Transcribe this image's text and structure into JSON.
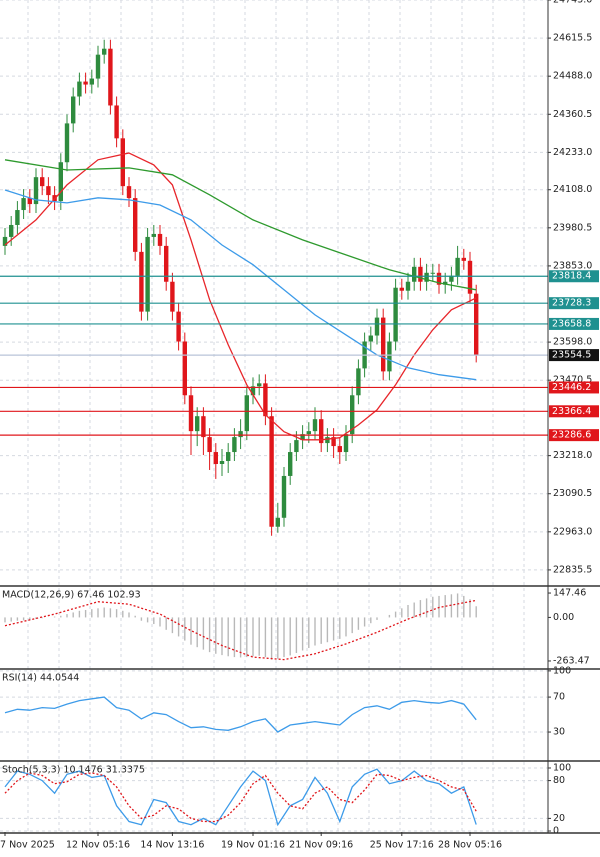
{
  "chart_data": [
    {
      "type": "candlestick",
      "categories": [
        "7 Nov 2025",
        null,
        null,
        null,
        null,
        null,
        null,
        null,
        null,
        null,
        null,
        null,
        null,
        null,
        null,
        "12 Nov 05:16",
        null,
        null,
        null,
        null,
        null,
        null,
        null,
        null,
        null,
        null,
        null,
        "14 Nov 13:16",
        null,
        null,
        null,
        null,
        null,
        null,
        null,
        null,
        null,
        null,
        null,
        null,
        "19 Nov 01:16",
        null,
        null,
        null,
        null,
        null,
        null,
        null,
        null,
        null,
        null,
        "21 Nov 09:16",
        null,
        null,
        null,
        null,
        null,
        null,
        null,
        null,
        null,
        null,
        null,
        null,
        "25 Nov 17:16",
        null,
        null,
        null,
        null,
        null,
        null,
        null,
        null,
        null,
        null,
        "28 Nov 05:16",
        null
      ],
      "open": [
        23920,
        23950,
        23990,
        24040,
        24080,
        24060,
        24150,
        24120,
        24090,
        24070,
        24200,
        24330,
        24420,
        24470,
        24460,
        24480,
        24560,
        24580,
        24390,
        24280,
        24120,
        24080,
        23900,
        23700,
        23950,
        23960,
        23920,
        23800,
        23700,
        23600,
        23420,
        23300,
        23350,
        23280,
        23230,
        23190,
        23200,
        23230,
        23280,
        23300,
        23420,
        23450,
        23460,
        23350,
        22980,
        23010,
        23150,
        23230,
        23270,
        23290,
        23300,
        23340,
        23260,
        23280,
        23250,
        23230,
        23290,
        23420,
        23510,
        23600,
        23620,
        23680,
        23500,
        23600,
        23780,
        23770,
        23800,
        23850,
        23800,
        23830,
        23830,
        23790,
        23800,
        23820,
        23880,
        23870,
        23760
      ],
      "high": [
        23980,
        24020,
        24070,
        24110,
        24110,
        24180,
        24180,
        24150,
        24120,
        24230,
        24360,
        24450,
        24500,
        24500,
        24510,
        24590,
        24610,
        24610,
        24420,
        24310,
        24150,
        24110,
        23930,
        23980,
        23990,
        23990,
        23950,
        23830,
        23730,
        23630,
        23450,
        23380,
        23380,
        23310,
        23260,
        23240,
        23260,
        23310,
        23340,
        23450,
        23480,
        23490,
        23490,
        23380,
        23060,
        23180,
        23260,
        23300,
        23320,
        23330,
        23380,
        23370,
        23310,
        23310,
        23280,
        23320,
        23450,
        23540,
        23630,
        23650,
        23710,
        23710,
        23630,
        23810,
        23810,
        23830,
        23880,
        23880,
        23860,
        23860,
        23860,
        23830,
        23850,
        23920,
        23910,
        23900,
        23790
      ],
      "low": [
        23890,
        23920,
        23960,
        24010,
        24030,
        24030,
        24090,
        24060,
        24040,
        24040,
        24170,
        24300,
        24390,
        24430,
        24430,
        24450,
        24530,
        24360,
        24250,
        24090,
        24050,
        23870,
        23670,
        23670,
        23920,
        23890,
        23770,
        23670,
        23570,
        23390,
        23220,
        23250,
        23220,
        23170,
        23140,
        23150,
        23160,
        23200,
        23240,
        23270,
        23390,
        23420,
        23320,
        22950,
        22960,
        22980,
        23120,
        23200,
        23240,
        23260,
        23270,
        23230,
        23230,
        23210,
        23190,
        23200,
        23260,
        23390,
        23480,
        23570,
        23590,
        23470,
        23470,
        23570,
        23740,
        23740,
        23770,
        23770,
        23770,
        23800,
        23760,
        23760,
        23770,
        23790,
        23840,
        23730,
        23530
      ],
      "close": [
        23950,
        23990,
        24040,
        24080,
        24060,
        24150,
        24120,
        24090,
        24070,
        24200,
        24330,
        24420,
        24470,
        24460,
        24480,
        24560,
        24580,
        24390,
        24280,
        24120,
        24080,
        23900,
        23700,
        23950,
        23960,
        23920,
        23800,
        23700,
        23600,
        23420,
        23300,
        23350,
        23280,
        23230,
        23190,
        23200,
        23230,
        23280,
        23300,
        23420,
        23450,
        23460,
        23350,
        22980,
        23010,
        23150,
        23230,
        23270,
        23290,
        23300,
        23340,
        23260,
        23280,
        23250,
        23230,
        23290,
        23420,
        23510,
        23600,
        23620,
        23680,
        23500,
        23600,
        23780,
        23770,
        23800,
        23850,
        23800,
        23830,
        23830,
        23790,
        23800,
        23820,
        23880,
        23870,
        23760,
        23554.5
      ],
      "up_color": "#2e8b3e",
      "down_color": "#e0161b",
      "lines": [
        {
          "color": "#e8262b",
          "x": [
            0,
            5,
            10,
            15,
            20,
            24,
            27,
            30,
            33,
            36,
            39,
            42,
            45,
            48,
            51,
            54,
            57,
            60,
            63,
            66,
            69,
            72,
            76
          ],
          "values": [
            23923,
            24007,
            24124,
            24208,
            24231,
            24191,
            24124,
            23940,
            23740,
            23589,
            23455,
            23355,
            23298,
            23271,
            23271,
            23278,
            23321,
            23371,
            23455,
            23555,
            23639,
            23706,
            23746
          ]
        },
        {
          "color": "#2e9a2e",
          "x": [
            0,
            10,
            20,
            27,
            33,
            40,
            48,
            55,
            62,
            70,
            76
          ],
          "values": [
            24208,
            24174,
            24181,
            24158,
            24091,
            24007,
            23940,
            23890,
            23840,
            23796,
            23773
          ]
        },
        {
          "color": "#3d9be9",
          "x": [
            0,
            5,
            10,
            15,
            20,
            25,
            30,
            35,
            40,
            45,
            50,
            55,
            60,
            65,
            70,
            76
          ],
          "values": [
            24107,
            24074,
            24064,
            24081,
            24074,
            24057,
            24007,
            23923,
            23857,
            23773,
            23689,
            23622,
            23555,
            23512,
            23489,
            23472
          ]
        }
      ],
      "levels": [
        {
          "value": 23818.4,
          "color": "#1f9190"
        },
        {
          "value": 23728.3,
          "color": "#1f9190"
        },
        {
          "value": 23658.8,
          "color": "#1f9190"
        },
        {
          "value": 23554.5,
          "color": "#111111"
        },
        {
          "value": 23446.2,
          "color": "#e0161b"
        },
        {
          "value": 23366.4,
          "color": "#e0161b"
        },
        {
          "value": 23286.6,
          "color": "#e0161b"
        }
      ],
      "ylim": [
        22785,
        24743
      ],
      "yticks": [
        {
          "value": 24743,
          "label": "24743.0"
        },
        24615.5,
        {
          "value": 24488,
          "label": "24488.0"
        },
        24360.5,
        {
          "value": 24233,
          "label": "24233.0"
        },
        {
          "value": 24108,
          "label": "24108.0"
        },
        23980.5,
        {
          "value": 23853,
          "label": "23853.0"
        },
        {
          "value": 23598,
          "label": "23598.0"
        },
        23470.5,
        {
          "value": 23218,
          "label": "23218.0"
        },
        23090.5,
        {
          "value": 22963,
          "label": "22963.0"
        },
        22835.5
      ],
      "grid": true
    },
    {
      "type": "macd",
      "title": "MACD(12,26,9) 67.46 102.93",
      "bars": {
        "color": "#b8b8b8",
        "values": [
          -30,
          -25,
          -20,
          -18,
          -15,
          -10,
          -5,
          0,
          5,
          10,
          20,
          30,
          40,
          45,
          50,
          55,
          60,
          55,
          50,
          40,
          30,
          10,
          -20,
          -30,
          -40,
          -55,
          -75,
          -95,
          -115,
          -140,
          -165,
          -180,
          -195,
          -210,
          -220,
          -228,
          -235,
          -240,
          -242,
          -240,
          -235,
          -232,
          -240,
          -255,
          -250,
          -240,
          -230,
          -215,
          -200,
          -185,
          -170,
          -160,
          -150,
          -140,
          -130,
          -115,
          -95,
          -75,
          -55,
          -35,
          -15,
          0,
          15,
          35,
          55,
          75,
          90,
          105,
          115,
          125,
          130,
          135,
          140,
          145,
          130,
          110,
          67.46
        ]
      },
      "signal": {
        "color": "#e0161b",
        "x": [
          0,
          8,
          15,
          20,
          25,
          30,
          35,
          40,
          45,
          50,
          55,
          60,
          65,
          70,
          76
        ],
        "values": [
          -50,
          20,
          95,
          80,
          20,
          -80,
          -170,
          -240,
          -255,
          -220,
          -160,
          -90,
          -10,
          60,
          102.93
        ]
      },
      "ylim": [
        -306,
        184
      ],
      "yticks": [
        147.46,
        {
          "value": 0,
          "label": "0.00"
        },
        -263.47
      ]
    },
    {
      "type": "line",
      "title": "RSI(14) 44.0544",
      "series": [
        {
          "color": "#3d9be9",
          "x": [
            0,
            2,
            4,
            6,
            8,
            10,
            12,
            14,
            16,
            18,
            20,
            22,
            24,
            26,
            28,
            30,
            32,
            34,
            36,
            38,
            40,
            42,
            44,
            46,
            48,
            50,
            52,
            54,
            56,
            58,
            60,
            62,
            64,
            66,
            68,
            70,
            72,
            74,
            76
          ],
          "values": [
            52,
            56,
            55,
            58,
            57,
            62,
            66,
            68,
            70,
            58,
            55,
            45,
            52,
            50,
            42,
            35,
            36,
            33,
            32,
            36,
            42,
            45,
            30,
            38,
            40,
            42,
            40,
            38,
            50,
            58,
            60,
            56,
            64,
            66,
            64,
            63,
            66,
            62,
            44.0544
          ]
        }
      ],
      "ylim": [
        -2,
        101
      ],
      "yticks": [
        100,
        70,
        30
      ]
    },
    {
      "type": "line",
      "title": "Stoch(5,3,3) 10.1476 31.3375",
      "series": [
        {
          "color": "#3d9be9",
          "x": [
            0,
            2,
            4,
            6,
            8,
            10,
            12,
            14,
            16,
            18,
            20,
            22,
            24,
            26,
            28,
            30,
            32,
            34,
            36,
            38,
            40,
            42,
            44,
            46,
            48,
            50,
            52,
            54,
            56,
            58,
            60,
            62,
            64,
            66,
            68,
            70,
            72,
            74,
            76
          ],
          "values": [
            70,
            95,
            90,
            80,
            60,
            90,
            95,
            85,
            88,
            40,
            15,
            10,
            50,
            45,
            15,
            10,
            20,
            10,
            40,
            70,
            95,
            80,
            10,
            40,
            50,
            85,
            60,
            15,
            70,
            90,
            98,
            75,
            80,
            95,
            80,
            75,
            60,
            70,
            10.1476
          ]
        },
        {
          "color": "#e0161b",
          "dash": true,
          "x": [
            0,
            2,
            4,
            6,
            8,
            10,
            12,
            14,
            16,
            18,
            20,
            22,
            24,
            26,
            28,
            30,
            32,
            34,
            36,
            38,
            40,
            42,
            44,
            46,
            48,
            50,
            52,
            54,
            56,
            58,
            60,
            62,
            64,
            66,
            68,
            70,
            72,
            74,
            76
          ],
          "values": [
            60,
            80,
            92,
            88,
            75,
            78,
            90,
            92,
            88,
            70,
            40,
            20,
            25,
            40,
            35,
            20,
            15,
            15,
            25,
            45,
            75,
            88,
            60,
            40,
            35,
            60,
            70,
            50,
            45,
            65,
            90,
            88,
            80,
            85,
            88,
            80,
            70,
            65,
            31.3375
          ]
        }
      ],
      "ylim": [
        -1.6,
        109.5
      ],
      "yticks": [
        100,
        80,
        20,
        0
      ]
    }
  ]
}
